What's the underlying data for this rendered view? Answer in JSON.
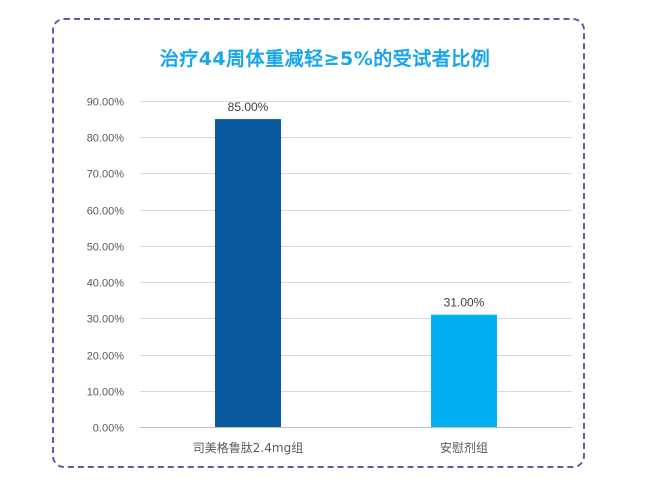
{
  "chart_data": {
    "type": "bar",
    "title": "治疗44周体重减轻≥5%的受试者比例",
    "categories": [
      "司美格鲁肽2.4mg组",
      "安慰剂组"
    ],
    "values": [
      85.0,
      31.0
    ],
    "data_labels": [
      "85.00%",
      "31.00%"
    ],
    "bar_colors": [
      "#0a5aa0",
      "#00b0f0"
    ],
    "ylim": [
      0,
      90
    ],
    "yticks": [
      0,
      10,
      20,
      30,
      40,
      50,
      60,
      70,
      80,
      90
    ],
    "ytick_labels": [
      "0.00%",
      "10.00%",
      "20.00%",
      "30.00%",
      "40.00%",
      "50.00%",
      "60.00%",
      "70.00%",
      "80.00%",
      "90.00%"
    ],
    "xlabel": "",
    "ylabel": "",
    "grid": true,
    "legend": "none"
  },
  "colors": {
    "title": "#1aa6e8",
    "frame_border": "#6a54b0",
    "gridline": "#d9d9d9"
  }
}
